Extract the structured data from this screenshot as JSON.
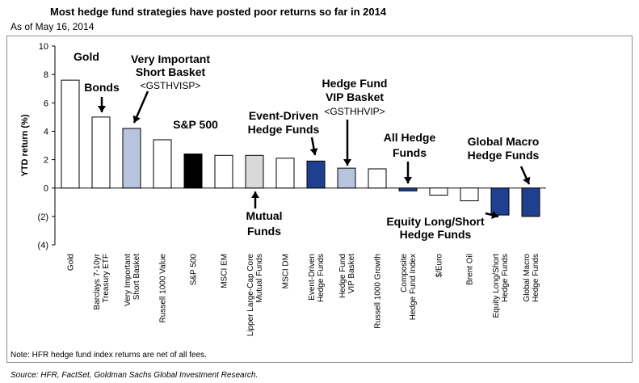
{
  "header": {
    "title": "Most hedge fund strategies have posted poor returns so far in 2014",
    "subtitle": "As of May 16, 2014"
  },
  "footer": {
    "note": "Note: HFR hedge fund index returns are net of all fees.",
    "source": "Source: HFR, FactSet, Goldman Sachs Global Investment Research."
  },
  "chart_data": {
    "type": "bar",
    "title": "Most hedge fund strategies have posted poor returns so far in 2014",
    "ylabel": "YTD return (%)",
    "xlabel": "",
    "ylim": [
      -4,
      10
    ],
    "yticks": [
      -4,
      -2,
      0,
      2,
      4,
      6,
      8,
      10
    ],
    "ytick_labels": [
      "(4)",
      "(2)",
      "0",
      "2",
      "4",
      "6",
      "8",
      "10"
    ],
    "grid": false,
    "categories": [
      [
        "Gold"
      ],
      [
        "Barclays 7-10yr",
        "Treasury ETF"
      ],
      [
        "Very Important",
        "Short Basket"
      ],
      [
        "Russell 1000 Value"
      ],
      [
        "S&P 500"
      ],
      [
        "MSCI EM"
      ],
      [
        "Lipper Large-Cap Core",
        "Mutual Funds"
      ],
      [
        "MSCI DM"
      ],
      [
        "Event-Driven",
        "Hedge Funds"
      ],
      [
        "Hedge Fund",
        "VIP Basket"
      ],
      [
        "Russell 1000 Growth"
      ],
      [
        "Composite",
        "Hedge Fund Index"
      ],
      [
        "$/Euro"
      ],
      [
        "Brent Oil"
      ],
      [
        "Equity Long/Short",
        "Hedge Funds"
      ],
      [
        "Global Macro",
        "Hedge Funds"
      ]
    ],
    "values": [
      7.6,
      5.0,
      4.2,
      3.4,
      2.4,
      2.3,
      2.3,
      2.1,
      1.9,
      1.4,
      1.35,
      -0.2,
      -0.5,
      -0.9,
      -1.9,
      -2.0
    ],
    "bar_colors": [
      "#ffffff",
      "#ffffff",
      "#b8c4de",
      "#ffffff",
      "#000000",
      "#ffffff",
      "#d9d9d9",
      "#ffffff",
      "#1f3f8f",
      "#b8c4de",
      "#ffffff",
      "#1f3f8f",
      "#ffffff",
      "#ffffff",
      "#1f3f8f",
      "#1f3f8f"
    ],
    "annotations": [
      {
        "lines": [
          "Gold"
        ],
        "bar": 0
      },
      {
        "lines": [
          "Bonds"
        ],
        "bar": 1
      },
      {
        "lines": [
          "Very Important",
          "Short Basket",
          "<GSTHVISP>"
        ],
        "bar": 2
      },
      {
        "lines": [
          "S&P 500"
        ],
        "bar": 4
      },
      {
        "lines": [
          "Event-Driven",
          "Hedge Funds"
        ],
        "bar": 8
      },
      {
        "lines": [
          "Hedge Fund",
          "VIP Basket",
          "<GSTHHVIP>"
        ],
        "bar": 9
      },
      {
        "lines": [
          "All Hedge",
          "Funds"
        ],
        "bar": 11
      },
      {
        "lines": [
          "Global Macro",
          "Hedge Funds"
        ],
        "bar": 15
      },
      {
        "lines": [
          "Mutual",
          "Funds"
        ],
        "bar": 6
      },
      {
        "lines": [
          "Equity Long/Short",
          "Hedge Funds"
        ],
        "bar": 14
      }
    ]
  }
}
